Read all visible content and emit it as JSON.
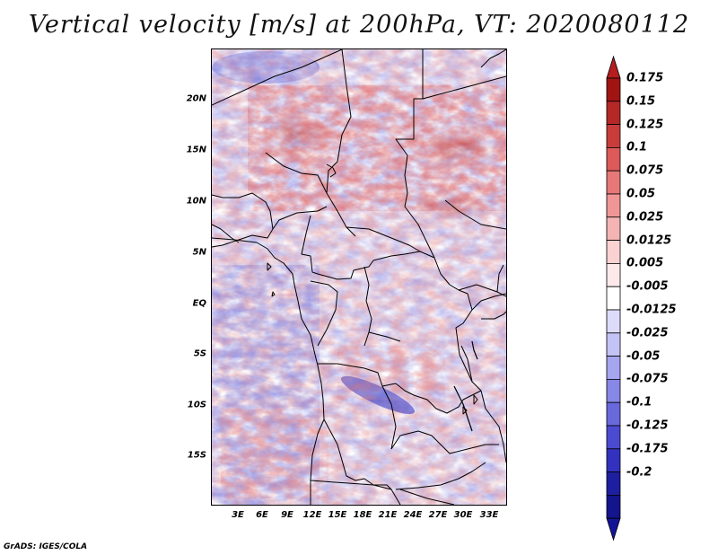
{
  "title": "Vertical velocity [m/s] at 200hPa, VT: 2020080112",
  "footer": "GrADS: IGES/COLA",
  "map": {
    "lat_range": [
      -20,
      25
    ],
    "lon_range": [
      -0.5,
      35.5
    ],
    "lat_ticks": [
      {
        "value": 20,
        "label": "20N"
      },
      {
        "value": 15,
        "label": "15N"
      },
      {
        "value": 10,
        "label": "10N"
      },
      {
        "value": 5,
        "label": "5N"
      },
      {
        "value": 0,
        "label": "EQ"
      },
      {
        "value": -5,
        "label": "5S"
      },
      {
        "value": -10,
        "label": "10S"
      },
      {
        "value": -15,
        "label": "15S"
      }
    ],
    "lon_ticks": [
      {
        "value": 3,
        "label": "3E"
      },
      {
        "value": 6,
        "label": "6E"
      },
      {
        "value": 9,
        "label": "9E"
      },
      {
        "value": 12,
        "label": "12E"
      },
      {
        "value": 15,
        "label": "15E"
      },
      {
        "value": 18,
        "label": "18E"
      },
      {
        "value": 21,
        "label": "21E"
      },
      {
        "value": 24,
        "label": "24E"
      },
      {
        "value": 27,
        "label": "27E"
      },
      {
        "value": 30,
        "label": "30E"
      },
      {
        "value": 33,
        "label": "33E"
      }
    ]
  },
  "colorbar": {
    "labels": [
      "0.175",
      "0.15",
      "0.125",
      "0.1",
      "0.075",
      "0.05",
      "0.025",
      "0.0125",
      "0.005",
      "-0.005",
      "-0.0125",
      "-0.025",
      "-0.05",
      "-0.075",
      "-0.1",
      "-0.125",
      "-0.175",
      "-0.2"
    ],
    "colors": [
      "#a01414",
      "#b42828",
      "#c83c3c",
      "#dc5a5a",
      "#e67878",
      "#f09696",
      "#f5b4b4",
      "#fad2d2",
      "#fde9e9",
      "#ffffff",
      "#dcdcfa",
      "#c3c3f5",
      "#a5a5f0",
      "#8787e6",
      "#6969dc",
      "#4b4bd2",
      "#3232be",
      "#1e1ea0",
      "#14148c"
    ],
    "top_color": "#b41e1e",
    "bottom_color": "#141496"
  }
}
